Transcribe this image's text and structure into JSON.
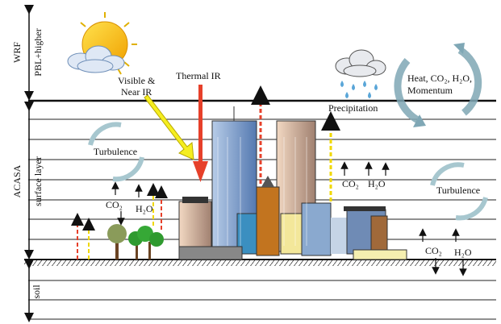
{
  "layers": [
    {
      "label": "WRF",
      "sublabel": "PBL+higher"
    },
    {
      "label": "ACASA",
      "sublabel": "surface layer"
    },
    {
      "label": "soil"
    }
  ],
  "radiation": {
    "visible": [
      "Visible &",
      "Near IR"
    ],
    "thermal": "Thermal IR"
  },
  "precipitation": "Precipitation",
  "exchange": [
    "Heat, CO₂, H₂O,",
    "Momentum"
  ],
  "turbulence": [
    "Turbulence",
    "Turbulence"
  ],
  "fluxes": [
    {
      "co2": "CO₂",
      "h2o": "H₂O"
    },
    {
      "co2": "CO₂",
      "h2o": "H₂O"
    },
    {
      "co2": "CO₂",
      "h2o": "H₂O"
    }
  ]
}
